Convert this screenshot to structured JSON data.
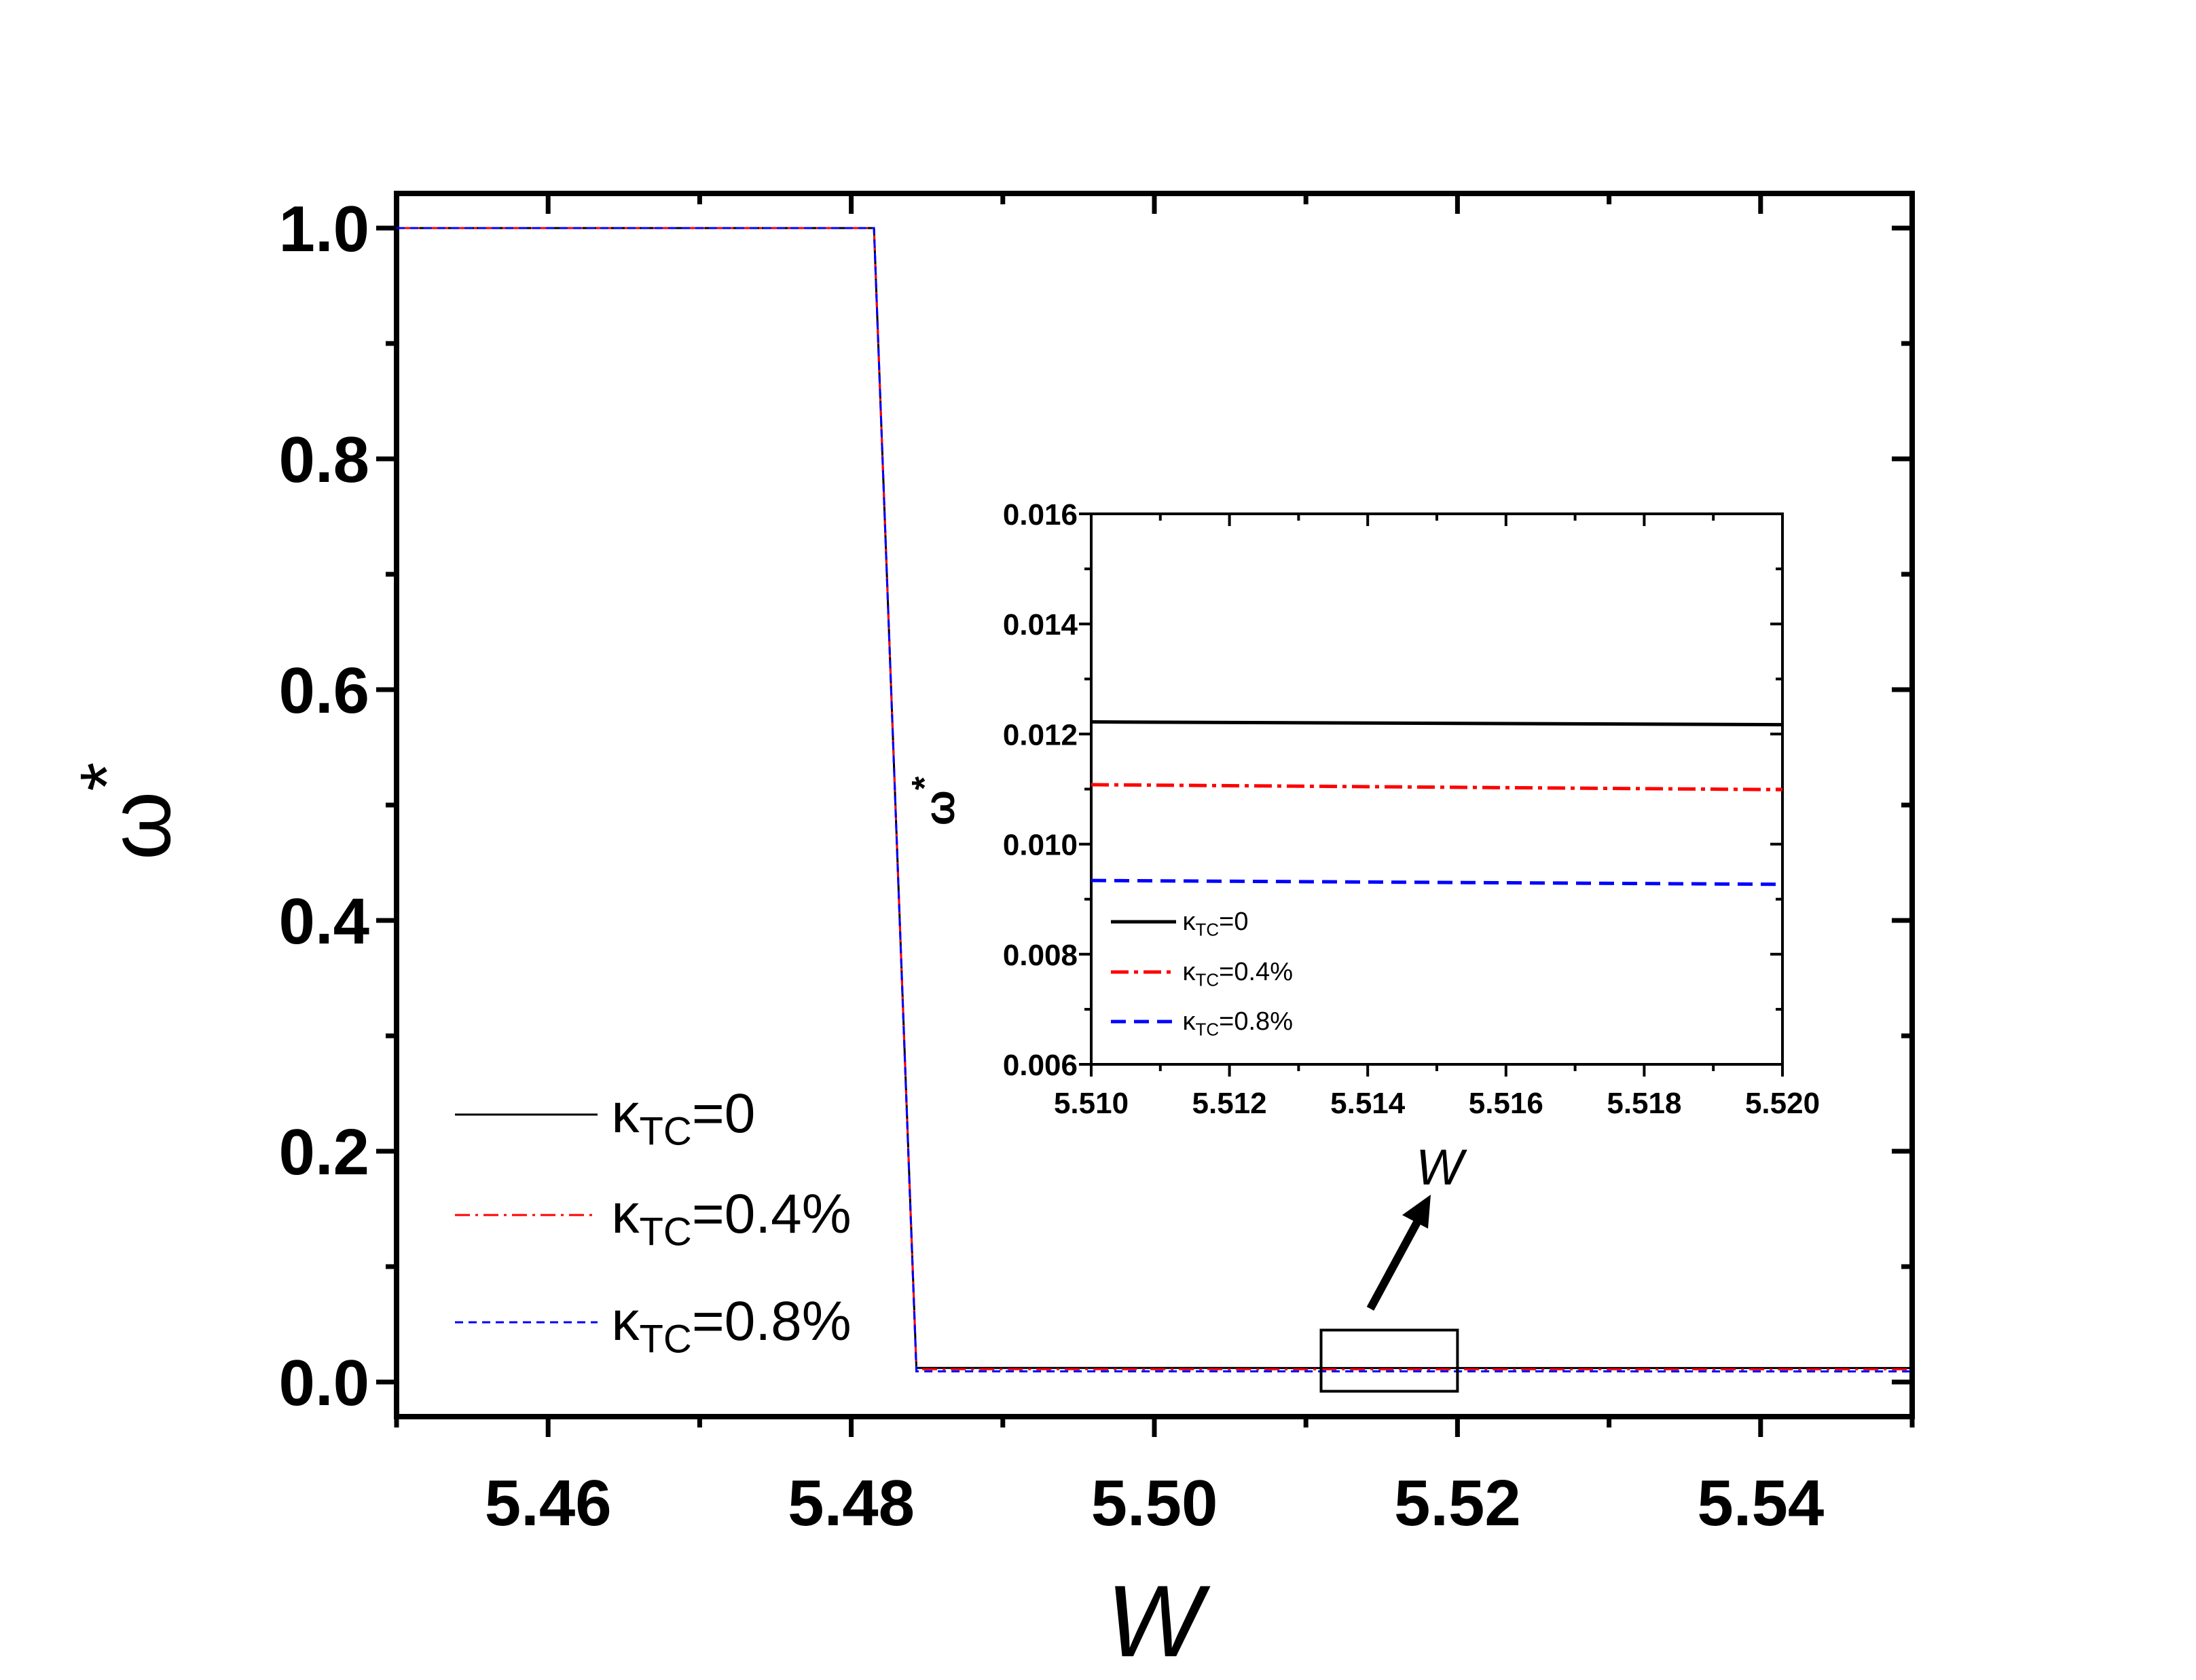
{
  "colors": {
    "k0": "#000000",
    "k04": "#ff0000",
    "k08": "#0000ff"
  },
  "chart_data": [
    {
      "type": "line",
      "name": "main",
      "xlabel": "W",
      "ylabel": "ω",
      "ylabel_sup": "*",
      "xlim": [
        5.45,
        5.55
      ],
      "ylim": [
        -0.03,
        1.03
      ],
      "xticks": [
        5.46,
        5.48,
        5.5,
        5.52,
        5.54
      ],
      "xtick_labels": [
        "5.46",
        "5.48",
        "5.50",
        "5.52",
        "5.54"
      ],
      "yticks": [
        0.0,
        0.2,
        0.4,
        0.6,
        0.8,
        1.0
      ],
      "ytick_labels": [
        "0.0",
        "0.2",
        "0.4",
        "0.6",
        "0.8",
        "1.0"
      ],
      "legend_position": "bottom-left",
      "series": [
        {
          "name": "κTC=0",
          "symbol": "κ",
          "sub": "TC",
          "value": "=0",
          "style": "solid",
          "x": [
            5.45,
            5.4815,
            5.4843,
            5.55
          ],
          "y": [
            1.0,
            1.0,
            0.0122,
            0.0121
          ]
        },
        {
          "name": "κTC=0.4%",
          "symbol": "κ",
          "sub": "TC",
          "value": "=0.4%",
          "style": "dash-dot",
          "x": [
            5.45,
            5.4815,
            5.4843,
            5.55
          ],
          "y": [
            1.0,
            1.0,
            0.0111,
            0.011
          ]
        },
        {
          "name": "κTC=0.8%",
          "symbol": "κ",
          "sub": "TC",
          "value": "=0.8%",
          "style": "dashed",
          "x": [
            5.45,
            5.4815,
            5.4843,
            5.55
          ],
          "y": [
            1.0,
            1.0,
            0.0093,
            0.0092
          ]
        }
      ],
      "annotations": [
        {
          "type": "zoom-box",
          "x": [
            5.511,
            5.52
          ],
          "y": [
            -0.008,
            0.045
          ]
        }
      ]
    },
    {
      "type": "line",
      "name": "inset",
      "xlabel": "W",
      "ylabel": "ω",
      "ylabel_sup": "*",
      "xlim": [
        5.51,
        5.52
      ],
      "ylim": [
        0.006,
        0.016
      ],
      "xticks": [
        5.51,
        5.512,
        5.514,
        5.516,
        5.518,
        5.52
      ],
      "xtick_labels": [
        "5.510",
        "5.512",
        "5.514",
        "5.516",
        "5.518",
        "5.520"
      ],
      "yticks": [
        0.006,
        0.008,
        0.01,
        0.012,
        0.014,
        0.016
      ],
      "ytick_labels": [
        "0.006",
        "0.008",
        "0.010",
        "0.012",
        "0.014",
        "0.016"
      ],
      "legend_position": "bottom-left",
      "series": [
        {
          "name": "κTC=0",
          "symbol": "κ",
          "sub": "TC",
          "value": "=0",
          "style": "solid",
          "x": [
            5.51,
            5.52
          ],
          "y": [
            0.01222,
            0.01217
          ]
        },
        {
          "name": "κTC=0.4%",
          "symbol": "κ",
          "sub": "TC",
          "value": "=0.4%",
          "style": "dash-dot",
          "x": [
            5.51,
            5.52
          ],
          "y": [
            0.01108,
            0.01099
          ]
        },
        {
          "name": "κTC=0.8%",
          "symbol": "κ",
          "sub": "TC",
          "value": "=0.8%",
          "style": "dashed",
          "x": [
            5.51,
            5.52
          ],
          "y": [
            0.00934,
            0.00927
          ]
        }
      ]
    }
  ]
}
